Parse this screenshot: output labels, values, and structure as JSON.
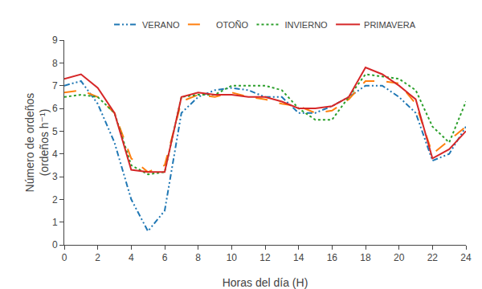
{
  "chart_data": {
    "type": "line",
    "xlabel": "Horas del día (H)",
    "ylabel": "Número de ordeños\n(ordeños h⁻¹)",
    "x": [
      0,
      1,
      2,
      3,
      4,
      5,
      6,
      7,
      8,
      9,
      10,
      11,
      12,
      13,
      14,
      15,
      16,
      17,
      18,
      19,
      20,
      21,
      22,
      23,
      24
    ],
    "series": [
      {
        "name": "VERANO",
        "line_style": "dashdotdot",
        "values": [
          7.0,
          7.2,
          6.2,
          4.5,
          2.0,
          0.6,
          1.5,
          5.8,
          6.5,
          6.8,
          6.9,
          6.8,
          6.5,
          6.5,
          5.8,
          5.8,
          6.1,
          6.5,
          7.0,
          7.0,
          6.5,
          5.8,
          3.7,
          4.0,
          5.2
        ]
      },
      {
        "name": "OTOÑO",
        "line_style": "longdash",
        "values": [
          6.7,
          6.8,
          6.5,
          5.8,
          3.8,
          3.2,
          3.5,
          6.3,
          6.6,
          6.5,
          6.7,
          6.5,
          6.4,
          6.2,
          6.1,
          5.8,
          5.9,
          6.4,
          7.2,
          7.2,
          7.1,
          6.2,
          4.0,
          4.6,
          5.2
        ]
      },
      {
        "name": "INVIERNO",
        "line_style": "dotted",
        "values": [
          6.5,
          6.6,
          6.5,
          5.8,
          3.5,
          3.1,
          3.2,
          6.5,
          6.6,
          6.6,
          7.0,
          7.0,
          7.0,
          6.8,
          6.0,
          5.5,
          5.5,
          6.5,
          7.5,
          7.4,
          7.3,
          6.8,
          5.2,
          4.5,
          6.3
        ]
      },
      {
        "name": "PRIMAVERA",
        "line_style": "solid",
        "values": [
          7.3,
          7.5,
          6.9,
          5.8,
          3.3,
          3.2,
          3.2,
          6.5,
          6.7,
          6.6,
          6.6,
          6.5,
          6.5,
          6.3,
          6.0,
          6.0,
          6.1,
          6.5,
          7.8,
          7.5,
          7.0,
          6.4,
          3.8,
          4.2,
          5.0
        ]
      }
    ],
    "xlim": [
      0,
      24
    ],
    "ylim": [
      0,
      9
    ],
    "xticks": [
      0,
      2,
      4,
      6,
      8,
      10,
      12,
      14,
      16,
      18,
      20,
      22,
      24
    ],
    "yticks": [
      0,
      1,
      2,
      3,
      4,
      5,
      6,
      7,
      8,
      9
    ],
    "grid": false,
    "legend": "top"
  }
}
